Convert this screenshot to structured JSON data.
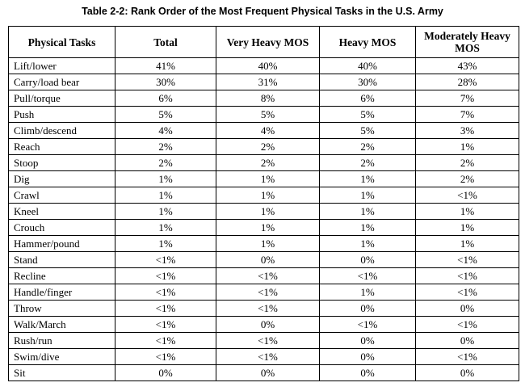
{
  "caption": "Table 2-2: Rank Order of the Most Frequent Physical Tasks in the U.S. Army",
  "headers": [
    "Physical Tasks",
    "Total",
    "Very Heavy MOS",
    "Heavy MOS",
    "Moderately Heavy MOS"
  ],
  "rows": [
    {
      "task": "Lift/lower",
      "total": "41%",
      "very_heavy": "40%",
      "heavy": "40%",
      "moderately_heavy": "43%"
    },
    {
      "task": "Carry/load bear",
      "total": "30%",
      "very_heavy": "31%",
      "heavy": "30%",
      "moderately_heavy": "28%"
    },
    {
      "task": "Pull/torque",
      "total": "6%",
      "very_heavy": "8%",
      "heavy": "6%",
      "moderately_heavy": "7%"
    },
    {
      "task": "Push",
      "total": "5%",
      "very_heavy": "5%",
      "heavy": "5%",
      "moderately_heavy": "7%"
    },
    {
      "task": "Climb/descend",
      "total": "4%",
      "very_heavy": "4%",
      "heavy": "5%",
      "moderately_heavy": "3%"
    },
    {
      "task": "Reach",
      "total": "2%",
      "very_heavy": "2%",
      "heavy": "2%",
      "moderately_heavy": "1%"
    },
    {
      "task": "Stoop",
      "total": "2%",
      "very_heavy": "2%",
      "heavy": "2%",
      "moderately_heavy": "2%"
    },
    {
      "task": "Dig",
      "total": "1%",
      "very_heavy": "1%",
      "heavy": "1%",
      "moderately_heavy": "2%"
    },
    {
      "task": "Crawl",
      "total": "1%",
      "very_heavy": "1%",
      "heavy": "1%",
      "moderately_heavy": "<1%"
    },
    {
      "task": "Kneel",
      "total": "1%",
      "very_heavy": "1%",
      "heavy": "1%",
      "moderately_heavy": "1%"
    },
    {
      "task": "Crouch",
      "total": "1%",
      "very_heavy": "1%",
      "heavy": "1%",
      "moderately_heavy": "1%"
    },
    {
      "task": "Hammer/pound",
      "total": "1%",
      "very_heavy": "1%",
      "heavy": "1%",
      "moderately_heavy": "1%"
    },
    {
      "task": "Stand",
      "total": "<1%",
      "very_heavy": "0%",
      "heavy": "0%",
      "moderately_heavy": "<1%"
    },
    {
      "task": "Recline",
      "total": "<1%",
      "very_heavy": "<1%",
      "heavy": "<1%",
      "moderately_heavy": "<1%"
    },
    {
      "task": "Handle/finger",
      "total": "<1%",
      "very_heavy": "<1%",
      "heavy": "1%",
      "moderately_heavy": "<1%"
    },
    {
      "task": "Throw",
      "total": "<1%",
      "very_heavy": "<1%",
      "heavy": "0%",
      "moderately_heavy": "0%"
    },
    {
      "task": "Walk/March",
      "total": "<1%",
      "very_heavy": "0%",
      "heavy": "<1%",
      "moderately_heavy": "<1%"
    },
    {
      "task": "Rush/run",
      "total": "<1%",
      "very_heavy": "<1%",
      "heavy": "0%",
      "moderately_heavy": "0%"
    },
    {
      "task": "Swim/dive",
      "total": "<1%",
      "very_heavy": "<1%",
      "heavy": "0%",
      "moderately_heavy": "<1%"
    },
    {
      "task": "Sit",
      "total": "0%",
      "very_heavy": "0%",
      "heavy": "0%",
      "moderately_heavy": "0%"
    }
  ]
}
